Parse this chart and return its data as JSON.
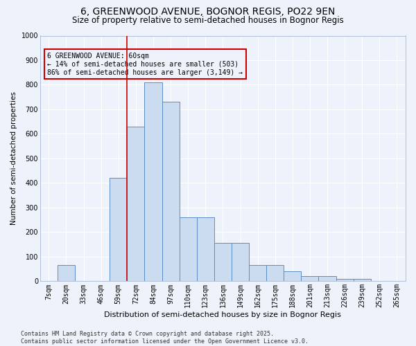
{
  "title1": "6, GREENWOOD AVENUE, BOGNOR REGIS, PO22 9EN",
  "title2": "Size of property relative to semi-detached houses in Bognor Regis",
  "xlabel": "Distribution of semi-detached houses by size in Bognor Regis",
  "ylabel": "Number of semi-detached properties",
  "categories": [
    "7sqm",
    "20sqm",
    "33sqm",
    "46sqm",
    "59sqm",
    "72sqm",
    "84sqm",
    "97sqm",
    "110sqm",
    "123sqm",
    "136sqm",
    "149sqm",
    "162sqm",
    "175sqm",
    "188sqm",
    "201sqm",
    "213sqm",
    "226sqm",
    "239sqm",
    "252sqm",
    "265sqm"
  ],
  "values": [
    0,
    65,
    0,
    0,
    420,
    630,
    810,
    730,
    260,
    260,
    155,
    155,
    65,
    65,
    40,
    20,
    20,
    10,
    10,
    0,
    0
  ],
  "bar_color": "#ccdcf0",
  "bar_edge_color": "#5b8cc8",
  "vline_color": "#cc0000",
  "subject_label": "6 GREENWOOD AVENUE: 60sqm",
  "pct_smaller": 14,
  "n_smaller": 503,
  "pct_larger": 86,
  "n_larger": 3149,
  "ylim": [
    0,
    1000
  ],
  "yticks": [
    0,
    100,
    200,
    300,
    400,
    500,
    600,
    700,
    800,
    900,
    1000
  ],
  "bg_color": "#eef2fb",
  "grid_color": "#ffffff",
  "footer": "Contains HM Land Registry data © Crown copyright and database right 2025.\nContains public sector information licensed under the Open Government Licence v3.0.",
  "title1_fontsize": 10,
  "title2_fontsize": 8.5,
  "xlabel_fontsize": 8,
  "ylabel_fontsize": 7.5,
  "tick_fontsize": 7,
  "footer_fontsize": 6,
  "annot_fontsize": 7
}
